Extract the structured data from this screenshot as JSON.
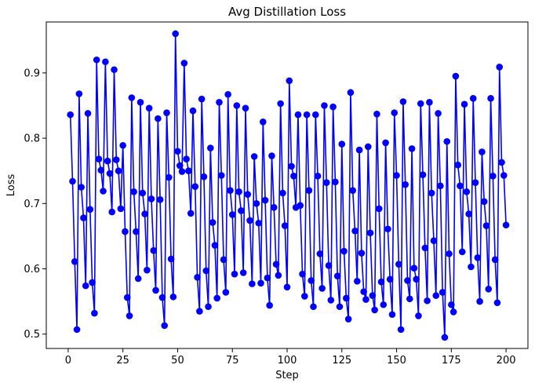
{
  "chart_data": {
    "type": "line",
    "title": "Avg Distillation Loss",
    "xlabel": "Step",
    "ylabel": "Loss",
    "xlim": [
      -10,
      210
    ],
    "ylim": [
      0.478,
      0.978
    ],
    "xticks": [
      0,
      25,
      50,
      75,
      100,
      125,
      150,
      175,
      200
    ],
    "xtick_labels": [
      "0",
      "25",
      "50",
      "75",
      "100",
      "125",
      "150",
      "175",
      "200"
    ],
    "yticks": [
      0.5,
      0.6,
      0.7,
      0.8,
      0.9
    ],
    "ytick_labels": [
      "0.5",
      "0.6",
      "0.7",
      "0.8",
      "0.9"
    ],
    "grid": false,
    "marker": "circle",
    "color": "#0000ff",
    "series": [
      {
        "x": [
          1,
          2,
          3,
          4,
          5,
          6,
          7,
          8,
          9,
          10,
          11,
          12,
          13,
          14,
          15,
          16,
          17,
          18,
          19,
          20,
          21,
          22,
          23,
          24,
          25,
          26,
          27,
          28,
          29,
          30,
          31,
          32,
          33,
          34,
          35,
          36,
          37,
          38,
          39,
          40,
          41,
          42,
          43,
          44,
          45,
          46,
          47,
          48,
          49,
          50,
          51,
          52,
          53,
          54,
          55,
          56,
          57,
          58,
          59,
          60,
          61,
          62,
          63,
          64,
          65,
          66,
          67,
          68,
          69,
          70,
          71,
          72,
          73,
          74,
          75,
          76,
          77,
          78,
          79,
          80,
          81,
          82,
          83,
          84,
          85,
          86,
          87,
          88,
          89,
          90,
          91,
          92,
          93,
          94,
          95,
          96,
          97,
          98,
          99,
          100,
          101,
          102,
          103,
          104,
          105,
          106,
          107,
          108,
          109,
          110,
          111,
          112,
          113,
          114,
          115,
          116,
          117,
          118,
          119,
          120,
          121,
          122,
          123,
          124,
          125,
          126,
          127,
          128,
          129,
          130,
          131,
          132,
          133,
          134,
          135,
          136,
          137,
          138,
          139,
          140,
          141,
          142,
          143,
          144,
          145,
          146,
          147,
          148,
          149,
          150,
          151,
          152,
          153,
          154,
          155,
          156,
          157,
          158,
          159,
          160,
          161,
          162,
          163,
          164,
          165,
          166,
          167,
          168,
          169,
          170,
          171,
          172,
          173,
          174,
          175,
          176,
          177,
          178,
          179,
          180,
          181,
          182,
          183,
          184,
          185,
          186,
          187,
          188,
          189,
          190,
          191,
          192,
          193,
          194,
          195,
          196,
          197,
          198,
          199,
          200
        ],
        "y": [
          0.836,
          0.734,
          0.611,
          0.507,
          0.868,
          0.725,
          0.678,
          0.574,
          0.838,
          0.691,
          0.579,
          0.532,
          0.92,
          0.768,
          0.751,
          0.719,
          0.917,
          0.765,
          0.746,
          0.687,
          0.905,
          0.767,
          0.75,
          0.692,
          0.789,
          0.657,
          0.556,
          0.528,
          0.862,
          0.718,
          0.657,
          0.585,
          0.855,
          0.716,
          0.684,
          0.598,
          0.846,
          0.707,
          0.628,
          0.567,
          0.83,
          0.706,
          0.556,
          0.513,
          0.839,
          0.74,
          0.615,
          0.557,
          0.96,
          0.78,
          0.758,
          0.749,
          0.915,
          0.768,
          0.75,
          0.685,
          0.842,
          0.726,
          0.587,
          0.535,
          0.86,
          0.741,
          0.597,
          0.542,
          0.785,
          0.671,
          0.636,
          0.555,
          0.855,
          0.743,
          0.614,
          0.564,
          0.867,
          0.72,
          0.683,
          0.592,
          0.85,
          0.718,
          0.689,
          0.594,
          0.846,
          0.714,
          0.674,
          0.577,
          0.772,
          0.7,
          0.67,
          0.578,
          0.825,
          0.705,
          0.586,
          0.544,
          0.773,
          0.694,
          0.607,
          0.59,
          0.853,
          0.716,
          0.666,
          0.572,
          0.888,
          0.757,
          0.742,
          0.694,
          0.836,
          0.697,
          0.592,
          0.558,
          0.836,
          0.72,
          0.582,
          0.542,
          0.836,
          0.742,
          0.623,
          0.57,
          0.85,
          0.732,
          0.605,
          0.552,
          0.848,
          0.733,
          0.589,
          0.542,
          0.791,
          0.627,
          0.555,
          0.523,
          0.87,
          0.72,
          0.658,
          0.581,
          0.782,
          0.624,
          0.565,
          0.553,
          0.787,
          0.655,
          0.559,
          0.537,
          0.837,
          0.692,
          0.58,
          0.545,
          0.793,
          0.661,
          0.584,
          0.53,
          0.839,
          0.743,
          0.607,
          0.507,
          0.856,
          0.729,
          0.582,
          0.554,
          0.784,
          0.601,
          0.584,
          0.528,
          0.853,
          0.744,
          0.632,
          0.551,
          0.855,
          0.716,
          0.643,
          0.559,
          0.838,
          0.727,
          0.564,
          0.495,
          0.795,
          0.623,
          0.545,
          0.534,
          0.895,
          0.759,
          0.727,
          0.626,
          0.852,
          0.718,
          0.684,
          0.603,
          0.861,
          0.732,
          0.617,
          0.55,
          0.779,
          0.703,
          0.666,
          0.569,
          0.861,
          0.742,
          0.614,
          0.548,
          0.909,
          0.763,
          0.743,
          0.667
        ]
      }
    ]
  }
}
